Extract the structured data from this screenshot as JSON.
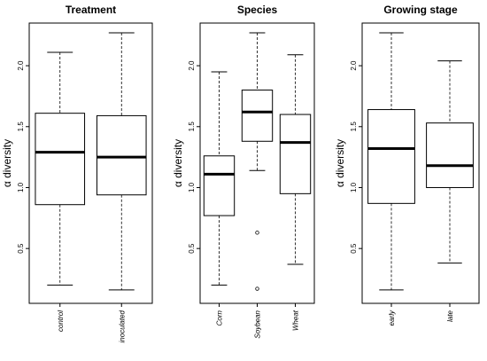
{
  "chart_data": [
    {
      "type": "boxplot",
      "title": "Treatment",
      "ylabel": "α diversity",
      "ylim": [
        0.05,
        2.35
      ],
      "yticks": [
        0.5,
        1.0,
        1.5,
        2.0
      ],
      "ytick_labels": [
        "0.5",
        "1.0",
        "1.5",
        "2.0"
      ],
      "categories": [
        "control",
        "inoculated"
      ],
      "boxes": [
        {
          "whisker_low": 0.2,
          "q1": 0.86,
          "median": 1.29,
          "q3": 1.61,
          "whisker_high": 2.11,
          "outliers": []
        },
        {
          "whisker_low": 0.16,
          "q1": 0.94,
          "median": 1.25,
          "q3": 1.59,
          "whisker_high": 2.27,
          "outliers": []
        }
      ]
    },
    {
      "type": "boxplot",
      "title": "Species",
      "ylabel": "α diversity",
      "ylim": [
        0.05,
        2.35
      ],
      "yticks": [
        0.5,
        1.0,
        1.5,
        2.0
      ],
      "ytick_labels": [
        "0.5",
        "1.0",
        "1.5",
        "2.0"
      ],
      "categories": [
        "Corn",
        "Soybean",
        "Wheat"
      ],
      "boxes": [
        {
          "whisker_low": 0.2,
          "q1": 0.77,
          "median": 1.11,
          "q3": 1.26,
          "whisker_high": 1.95,
          "outliers": []
        },
        {
          "whisker_low": 1.14,
          "q1": 1.38,
          "median": 1.62,
          "q3": 1.8,
          "whisker_high": 2.27,
          "outliers": [
            0.63,
            0.17
          ]
        },
        {
          "whisker_low": 0.37,
          "q1": 0.95,
          "median": 1.37,
          "q3": 1.6,
          "whisker_high": 2.09,
          "outliers": []
        }
      ]
    },
    {
      "type": "boxplot",
      "title": "Growing stage",
      "ylabel": "α diversity",
      "ylim": [
        0.05,
        2.35
      ],
      "yticks": [
        0.5,
        1.0,
        1.5,
        2.0
      ],
      "ytick_labels": [
        "0.5",
        "1.0",
        "1.5",
        "2.0"
      ],
      "categories": [
        "early",
        "late"
      ],
      "boxes": [
        {
          "whisker_low": 0.16,
          "q1": 0.87,
          "median": 1.32,
          "q3": 1.64,
          "whisker_high": 2.27,
          "outliers": []
        },
        {
          "whisker_low": 0.38,
          "q1": 1.0,
          "median": 1.18,
          "q3": 1.53,
          "whisker_high": 2.04,
          "outliers": []
        }
      ]
    }
  ]
}
